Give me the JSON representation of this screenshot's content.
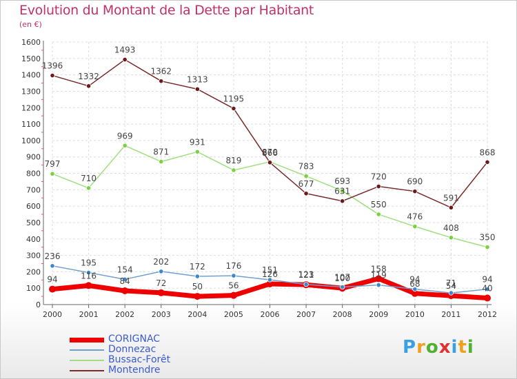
{
  "header": {
    "title": "Evolution du Montant de la Dette par Habitant",
    "subtitle": "(en €)"
  },
  "logo": {
    "letters": [
      {
        "ch": "P",
        "color": "#3aa0e0"
      },
      {
        "ch": "r",
        "color": "#f0a020"
      },
      {
        "ch": "o",
        "color": "#50b030"
      },
      {
        "ch": "x",
        "color": "#e03030"
      },
      {
        "ch": "i",
        "color": "#3aa0e0"
      },
      {
        "ch": "t",
        "color": "#f0a020"
      },
      {
        "ch": "i",
        "color": "#50b030"
      }
    ]
  },
  "chart_data": {
    "type": "line",
    "title": "Evolution du Montant de la Dette par Habitant",
    "subtitle": "(en €)",
    "xlabel": "",
    "ylabel": "",
    "ylim": [
      0,
      1600
    ],
    "yticks": [
      0,
      100,
      200,
      300,
      400,
      500,
      600,
      700,
      800,
      900,
      1000,
      1100,
      1200,
      1300,
      1400,
      1500,
      1600
    ],
    "categories": [
      "2000",
      "2001",
      "2002",
      "2003",
      "2004",
      "2005",
      "2006",
      "2007",
      "2008",
      "2009",
      "2010",
      "2011",
      "2012"
    ],
    "grid": true,
    "legend_position": "bottom-left",
    "series": [
      {
        "name": "CORIGNAC",
        "color": "#ee0000",
        "width": 7,
        "marker": "#ee0000",
        "values": [
          94,
          116,
          84,
          72,
          50,
          56,
          126,
          121,
          100,
          158,
          68,
          54,
          40
        ]
      },
      {
        "name": "Donnezac",
        "color": "#6f9fcf",
        "width": 1.5,
        "marker": "#3a86cf",
        "values": [
          236,
          195,
          154,
          202,
          172,
          176,
          151,
          123,
          107,
          119,
          94,
          71,
          94
        ]
      },
      {
        "name": "Bussac-Forêt",
        "color": "#9fdf7f",
        "width": 1.5,
        "marker": "#7cd040",
        "values": [
          797,
          710,
          969,
          871,
          931,
          819,
          870,
          783,
          693,
          550,
          476,
          408,
          350
        ]
      },
      {
        "name": "Montendre",
        "color": "#7a2a2a",
        "width": 1.5,
        "marker": "#6a1a1a",
        "values": [
          1396,
          1332,
          1493,
          1362,
          1313,
          1195,
          866,
          677,
          631,
          720,
          690,
          591,
          868
        ]
      }
    ]
  }
}
